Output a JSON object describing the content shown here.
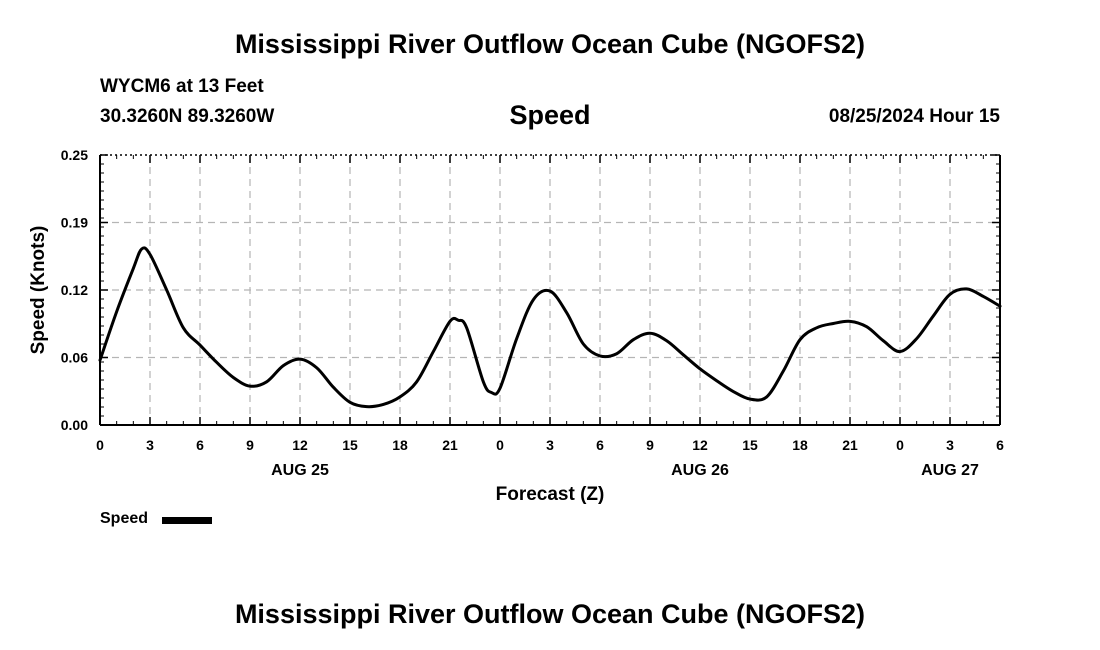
{
  "header": {
    "title": "Mississippi River Outflow Ocean Cube (NGOFS2)",
    "station": "WYCM6 at 13 Feet",
    "coords": "30.3260N  89.3260W",
    "chart_title": "Speed",
    "run_time": "08/25/2024 Hour 15"
  },
  "footer": {
    "title": "Mississippi River Outflow Ocean Cube (NGOFS2)"
  },
  "legend": {
    "label": "Speed",
    "color": "#000000"
  },
  "chart_data": {
    "type": "line",
    "title": "Speed",
    "xlabel": "Forecast (Z)",
    "ylabel": "Speed (Knots)",
    "ylim": [
      0,
      0.25
    ],
    "yticks": [
      "0.00",
      "0.06",
      "0.12",
      "0.19",
      "0.25"
    ],
    "xlim": [
      0,
      54
    ],
    "xtick_labels": [
      "0",
      "3",
      "6",
      "9",
      "12",
      "15",
      "18",
      "21",
      "0",
      "3",
      "6",
      "9",
      "12",
      "15",
      "18",
      "21",
      "0",
      "3",
      "6"
    ],
    "date_labels": [
      {
        "text": "AUG 25",
        "x": 12
      },
      {
        "text": "AUG 26",
        "x": 36
      },
      {
        "text": "AUG 27",
        "x": 51
      }
    ],
    "grid": true,
    "series": [
      {
        "name": "Speed",
        "color": "#000000",
        "x": [
          0,
          1,
          2,
          2.5,
          3,
          4,
          5,
          6,
          7,
          8,
          9,
          10,
          11,
          12,
          13,
          14,
          15,
          16,
          17,
          18,
          19,
          20,
          21,
          21.5,
          22,
          23,
          23.5,
          24,
          25,
          26,
          27,
          28,
          29,
          30,
          31,
          32,
          33,
          34,
          35,
          36,
          37,
          38,
          39,
          40,
          41,
          42,
          43,
          44,
          45,
          46,
          47,
          48,
          49,
          50,
          51,
          52,
          53,
          54
        ],
        "values": [
          0.06,
          0.105,
          0.145,
          0.163,
          0.158,
          0.125,
          0.09,
          0.074,
          0.058,
          0.044,
          0.036,
          0.04,
          0.055,
          0.061,
          0.053,
          0.035,
          0.021,
          0.017,
          0.019,
          0.026,
          0.04,
          0.068,
          0.096,
          0.097,
          0.09,
          0.04,
          0.03,
          0.034,
          0.08,
          0.116,
          0.124,
          0.104,
          0.075,
          0.064,
          0.066,
          0.079,
          0.085,
          0.078,
          0.065,
          0.052,
          0.041,
          0.031,
          0.024,
          0.026,
          0.05,
          0.079,
          0.09,
          0.094,
          0.096,
          0.091,
          0.078,
          0.068,
          0.08,
          0.101,
          0.121,
          0.126,
          0.119,
          0.11
        ]
      }
    ]
  }
}
